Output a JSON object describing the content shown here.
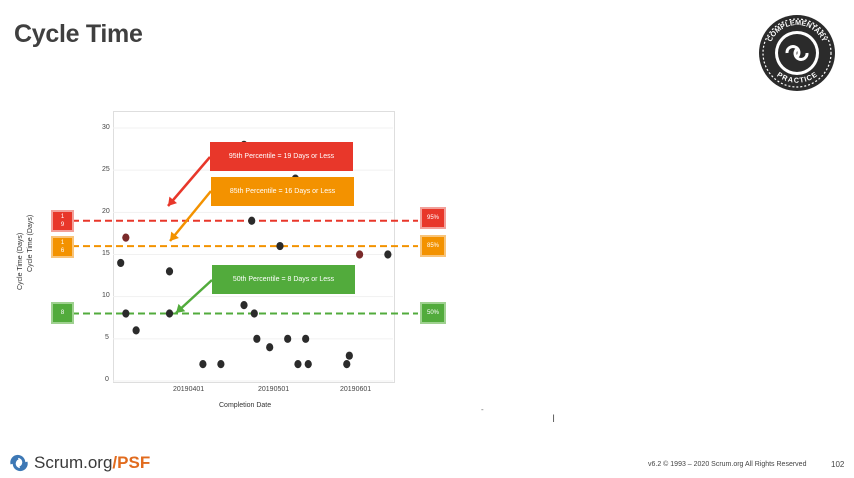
{
  "slide": {
    "title": "Cycle Time",
    "badge_text_top": "COMPLEMENTARY",
    "badge_text_bottom": "PRACTICE",
    "footer_brand": "Scrum.org",
    "footer_suffix": "/PSF",
    "copyright": "v6.2 © 1993 – 2020 Scrum.org All Rights Reserved",
    "page_number": "102",
    "colors": {
      "red": "#e8372a",
      "orange": "#f39200",
      "green": "#52ab3c",
      "dark": "#2b2b2b"
    }
  },
  "callouts": {
    "p95": "95th Percentile = 19 Days or Less",
    "p85": "85th Percentile = 16 Days or Less",
    "p50": "50th Percentile = 8 Days or Less"
  },
  "side_boxes": {
    "left_95": "1\n9",
    "left_85": "1\n6",
    "left_50": "8",
    "right_95": "95%",
    "right_85": "85%",
    "right_50": "50%"
  },
  "chart_data": {
    "type": "scatter",
    "xlabel": "Completion Date",
    "ylabel": "Cycle Time (Days)",
    "ylabel_overlay": "Cycle Time (Days)",
    "ylim": [
      0,
      30
    ],
    "yticks": [
      0,
      5,
      10,
      15,
      20,
      25,
      30
    ],
    "xticks": [
      "20190401",
      "20190501",
      "20190601"
    ],
    "percentile_lines": [
      {
        "label": "95%",
        "value": 19
      },
      {
        "label": "85%",
        "value": 16
      },
      {
        "label": "50%",
        "value": 8
      }
    ],
    "points": [
      {
        "x": "2019-03-03",
        "y": 14
      },
      {
        "x": "2019-03-05",
        "y": 17
      },
      {
        "x": "2019-03-05",
        "y": 8
      },
      {
        "x": "2019-03-09",
        "y": 6
      },
      {
        "x": "2019-03-22",
        "y": 13
      },
      {
        "x": "2019-03-22",
        "y": 8
      },
      {
        "x": "2019-04-04",
        "y": 2
      },
      {
        "x": "2019-04-11",
        "y": 2
      },
      {
        "x": "2019-04-20",
        "y": 28
      },
      {
        "x": "2019-04-20",
        "y": 9
      },
      {
        "x": "2019-04-23",
        "y": 19
      },
      {
        "x": "2019-04-24",
        "y": 8
      },
      {
        "x": "2019-04-25",
        "y": 5
      },
      {
        "x": "2019-04-30",
        "y": 4
      },
      {
        "x": "2019-05-04",
        "y": 16
      },
      {
        "x": "2019-05-07",
        "y": 5
      },
      {
        "x": "2019-05-10",
        "y": 24
      },
      {
        "x": "2019-05-11",
        "y": 2
      },
      {
        "x": "2019-05-14",
        "y": 5
      },
      {
        "x": "2019-05-15",
        "y": 2
      },
      {
        "x": "2019-05-30",
        "y": 2
      },
      {
        "x": "2019-05-31",
        "y": 3
      },
      {
        "x": "2019-06-04",
        "y": 15
      },
      {
        "x": "2019-06-15",
        "y": 15
      }
    ]
  }
}
